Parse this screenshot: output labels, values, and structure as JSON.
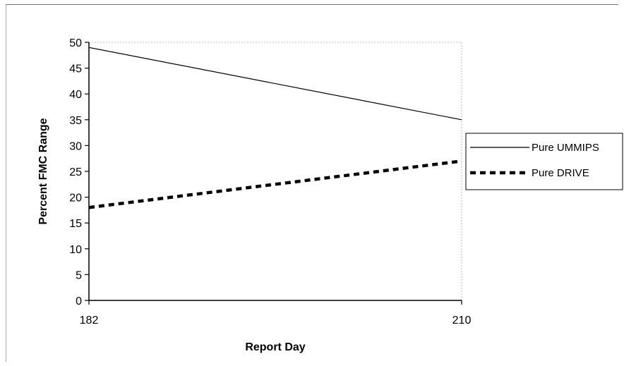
{
  "chart_data": {
    "type": "line",
    "x": [
      182,
      210
    ],
    "xlabel": "Report Day",
    "ylabel": "Percent FMC Range",
    "ylim": [
      0,
      50
    ],
    "yticks": [
      0,
      5,
      10,
      15,
      20,
      25,
      30,
      35,
      40,
      45,
      50
    ],
    "xticks": [
      182,
      210
    ],
    "grid": false,
    "legend_position": "right",
    "series": [
      {
        "name": "Pure UMMIPS",
        "values": [
          49,
          35
        ],
        "style": "solid",
        "color": "#000000"
      },
      {
        "name": "Pure DRIVE",
        "values": [
          18,
          27
        ],
        "style": "dashed",
        "color": "#000000"
      }
    ]
  }
}
